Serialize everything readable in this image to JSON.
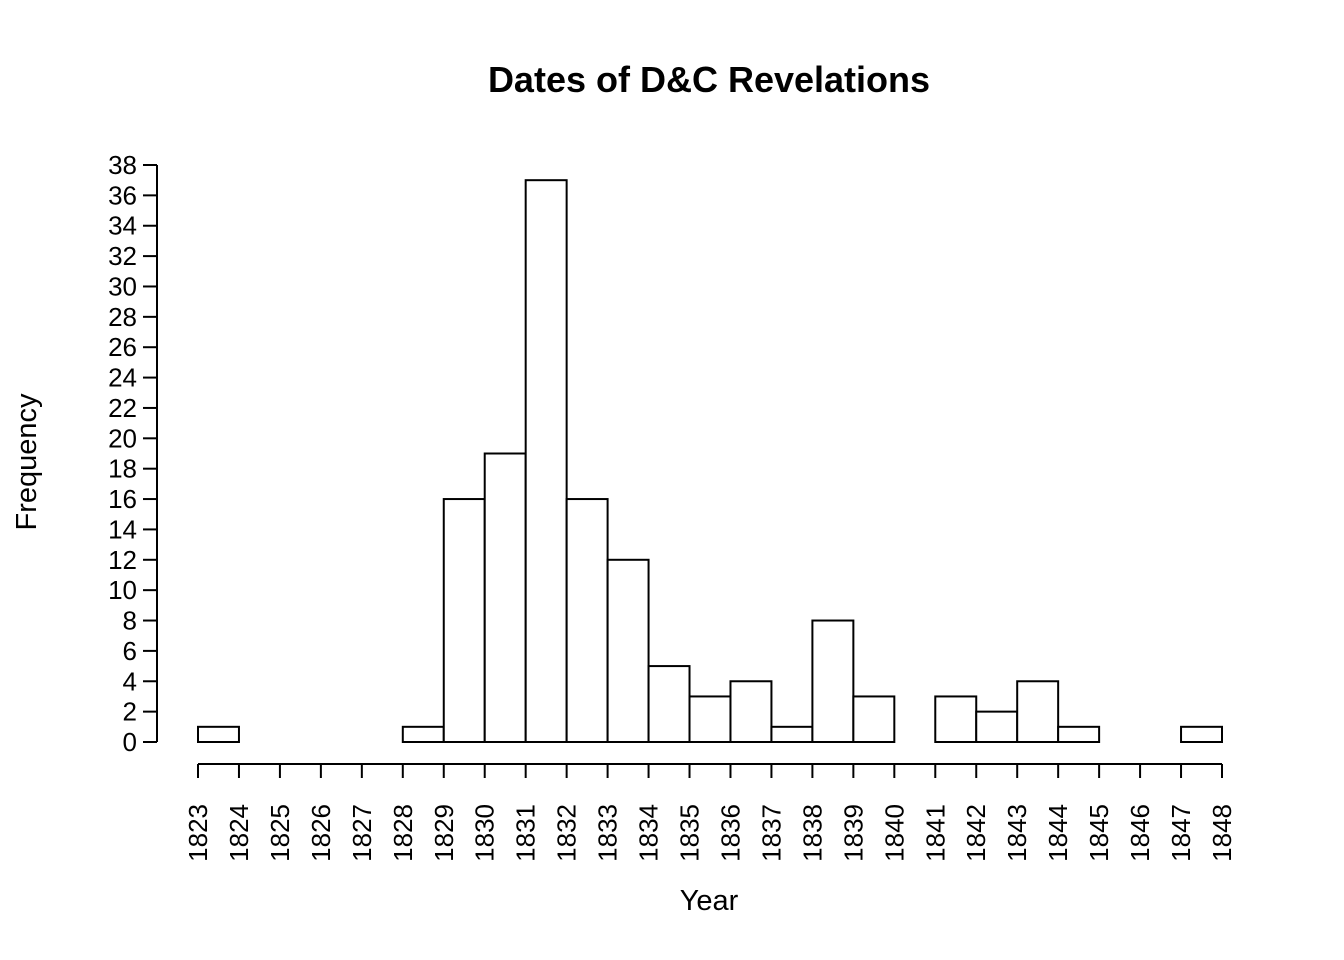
{
  "chart_data": {
    "type": "bar",
    "title": "Dates of D&C Revelations",
    "xlabel": "Year",
    "ylabel": "Frequency",
    "x_ticks": [
      "1823",
      "1824",
      "1825",
      "1826",
      "1827",
      "1828",
      "1829",
      "1830",
      "1831",
      "1832",
      "1833",
      "1834",
      "1835",
      "1836",
      "1837",
      "1838",
      "1839",
      "1840",
      "1841",
      "1842",
      "1843",
      "1844",
      "1845",
      "1846",
      "1847",
      "1848"
    ],
    "y_ticks": [
      0,
      2,
      4,
      6,
      8,
      10,
      12,
      14,
      16,
      18,
      20,
      22,
      24,
      26,
      28,
      30,
      32,
      34,
      36,
      38
    ],
    "bins": [
      {
        "start": 1823,
        "end": 1824,
        "value": 1
      },
      {
        "start": 1824,
        "end": 1825,
        "value": 0
      },
      {
        "start": 1825,
        "end": 1826,
        "value": 0
      },
      {
        "start": 1826,
        "end": 1827,
        "value": 0
      },
      {
        "start": 1827,
        "end": 1828,
        "value": 0
      },
      {
        "start": 1828,
        "end": 1829,
        "value": 1
      },
      {
        "start": 1829,
        "end": 1830,
        "value": 16
      },
      {
        "start": 1830,
        "end": 1831,
        "value": 19
      },
      {
        "start": 1831,
        "end": 1832,
        "value": 37
      },
      {
        "start": 1832,
        "end": 1833,
        "value": 16
      },
      {
        "start": 1833,
        "end": 1834,
        "value": 12
      },
      {
        "start": 1834,
        "end": 1835,
        "value": 5
      },
      {
        "start": 1835,
        "end": 1836,
        "value": 3
      },
      {
        "start": 1836,
        "end": 1837,
        "value": 4
      },
      {
        "start": 1837,
        "end": 1838,
        "value": 1
      },
      {
        "start": 1838,
        "end": 1839,
        "value": 8
      },
      {
        "start": 1839,
        "end": 1840,
        "value": 3
      },
      {
        "start": 1840,
        "end": 1841,
        "value": 0
      },
      {
        "start": 1841,
        "end": 1842,
        "value": 3
      },
      {
        "start": 1842,
        "end": 1843,
        "value": 2
      },
      {
        "start": 1843,
        "end": 1844,
        "value": 4
      },
      {
        "start": 1844,
        "end": 1845,
        "value": 1
      },
      {
        "start": 1845,
        "end": 1846,
        "value": 0
      },
      {
        "start": 1846,
        "end": 1847,
        "value": 0
      },
      {
        "start": 1847,
        "end": 1848,
        "value": 1
      }
    ],
    "xlim": [
      1823,
      1848
    ],
    "ylim": [
      0,
      38
    ],
    "grid": false,
    "legend": "none",
    "colors": {
      "bar_fill": "#ffffff",
      "bar_stroke": "#000000"
    }
  }
}
